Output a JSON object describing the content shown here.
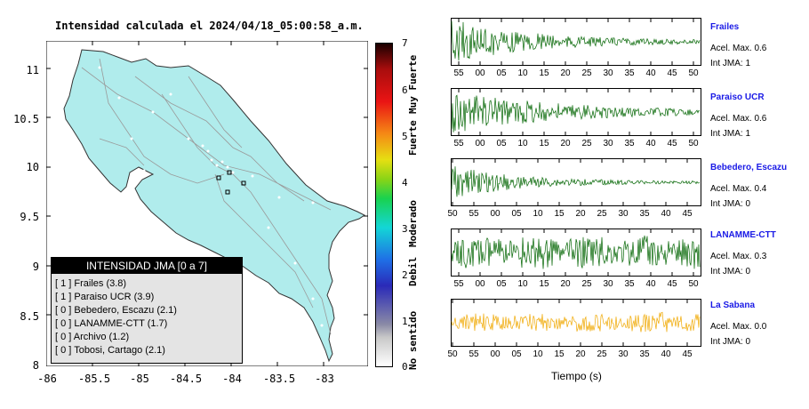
{
  "title": "Intensidad calculada el 2024/04/18_05:00:58_a.m.",
  "map": {
    "lat_ticks": [
      "11",
      "10.5",
      "10",
      "9.5",
      "9",
      "8.5",
      "8"
    ],
    "lon_ticks": [
      "-86",
      "-85.5",
      "-85",
      "-84.5",
      "-84",
      "-83.5",
      "-83"
    ],
    "land_color": "#b0ecec"
  },
  "legend": {
    "title": "INTENSIDAD JMA [0 a 7]",
    "items": [
      "[ 1 ] Frailes (3.8)",
      "[ 1 ] Paraiso UCR (3.9)",
      "[ 0 ] Bebedero, Escazu (2.1)",
      "[ 0 ] LANAMME-CTT (1.7)",
      "[ 0 ] Archivo (1.2)",
      "[ 0 ] Tobosi, Cartago (2.1)"
    ]
  },
  "colorbar": {
    "ticks": [
      "7",
      "6",
      "5",
      "4",
      "3",
      "2",
      "1",
      "0"
    ],
    "labels": [
      "Muy Fuerte",
      "Fuerte",
      "Moderado",
      "Debil",
      "No sentido"
    ]
  },
  "stations": [
    {
      "name": "Frailes",
      "accel": "Acel. Max. 0.6",
      "jma": "Int JMA: 1",
      "color": "#006400",
      "ticks": [
        "55",
        "00",
        "05",
        "10",
        "15",
        "20",
        "25",
        "30",
        "35",
        "40",
        "45",
        "50"
      ],
      "offset": 0.6,
      "amp": 1.0,
      "decay": 0.55
    },
    {
      "name": "Paraiso UCR",
      "accel": "Acel. Max. 0.6",
      "jma": "Int JMA: 1",
      "color": "#006400",
      "ticks": [
        "55",
        "00",
        "05",
        "10",
        "15",
        "20",
        "25",
        "30",
        "35",
        "40",
        "45",
        "50"
      ],
      "offset": 1.4,
      "amp": 0.95,
      "decay": 0.4
    },
    {
      "name": "Bebedero, Escazu",
      "accel": "Acel. Max. 0.4",
      "jma": "Int JMA: 0",
      "color": "#006400",
      "ticks": [
        "50",
        "55",
        "00",
        "05",
        "10",
        "15",
        "20",
        "25",
        "30",
        "35",
        "40",
        "45"
      ],
      "offset": 0.3,
      "amp": 0.75,
      "decay": 0.65
    },
    {
      "name": "LANAMME-CTT",
      "accel": "Acel. Max. 0.3",
      "jma": "Int JMA: 0",
      "color": "#006400",
      "ticks": [
        "55",
        "00",
        "05",
        "10",
        "15",
        "20",
        "25",
        "30",
        "35",
        "40",
        "45",
        "50"
      ],
      "offset": 1.0,
      "amp": 0.8,
      "decay": 0.0
    },
    {
      "name": "La Sabana",
      "accel": "Acel. Max. 0.0",
      "jma": "Int JMA: 0",
      "color": "#f0a800",
      "ticks": [
        "50",
        "55",
        "00",
        "05",
        "10",
        "15",
        "20",
        "25",
        "30",
        "35",
        "40",
        "45"
      ],
      "offset": 0.5,
      "amp": 0.45,
      "decay": 0.0
    }
  ],
  "xaxis_title": "Tiempo (s)",
  "chart_data": {
    "type": "map",
    "xlim": [
      -86,
      -82.5
    ],
    "ylim": [
      8,
      11.3
    ],
    "markers": [
      {
        "lon": -84.0,
        "lat": 9.95
      },
      {
        "lon": -84.15,
        "lat": 9.9
      },
      {
        "lon": -83.85,
        "lat": 9.85
      },
      {
        "lon": -84.05,
        "lat": 9.78
      }
    ]
  }
}
